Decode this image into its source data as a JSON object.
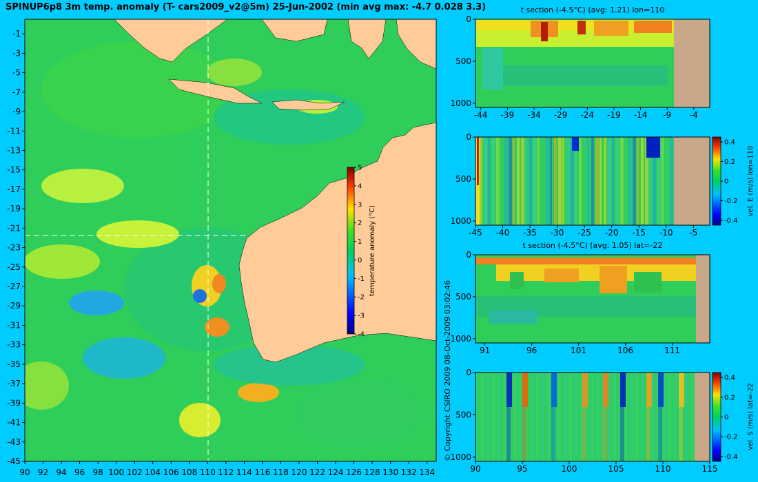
{
  "title": "SPINUP6p8 3m temp. anomaly (T- cars2009_v2@5m) 25-Jun-2002 (min avg max: -4.7 0.028 3.3)",
  "copyright": "© Copyright CSIRO 2009  08-Oct-2009 03:02:46",
  "colors": {
    "background": "#00ccff",
    "land": "#ffcc99",
    "section_land": "#c8a888"
  },
  "chart_data": [
    {
      "type": "heatmap",
      "title": "SPINUP6p8 3m temp. anomaly (T- cars2009_v2@5m) 25-Jun-2002 (min avg max: -4.7 0.028 3.3)",
      "x_ticks": [
        "90",
        "92",
        "94",
        "96",
        "98",
        "100",
        "102",
        "104",
        "106",
        "108",
        "110",
        "112",
        "114",
        "116",
        "118",
        "120",
        "122",
        "124",
        "126",
        "128",
        "130",
        "132",
        "134"
      ],
      "y_ticks": [
        "-1",
        "-3",
        "-5",
        "-7",
        "-9",
        "-11",
        "-13",
        "-15",
        "-17",
        "-19",
        "-21",
        "-23",
        "-25",
        "-27",
        "-29",
        "-31",
        "-33",
        "-35",
        "-37",
        "-39",
        "-41",
        "-43",
        "-45"
      ],
      "xlim": [
        90,
        135
      ],
      "ylim": [
        -45,
        0.5
      ],
      "section_lines": {
        "lon": 110,
        "lat": -22
      },
      "colorbar": {
        "label": "temperature anomaly (°C)",
        "ticks": [
          "5",
          "4",
          "3",
          "2",
          "1",
          "0",
          "-1",
          "-2",
          "-3",
          "-4"
        ],
        "range": [
          -4,
          5
        ]
      }
    },
    {
      "type": "heatmap",
      "title": "t section (-4.5°C) (avg: 1.21) lon=110",
      "x_ticks": [
        "-44",
        "-39",
        "-34",
        "-29",
        "-24",
        "-19",
        "-14",
        "-9",
        "-4"
      ],
      "y_ticks": [
        "0",
        "500",
        "1000"
      ],
      "xlim": [
        -45,
        -1
      ],
      "ylim": [
        1050,
        0
      ]
    },
    {
      "type": "heatmap",
      "title": "",
      "x_ticks": [
        "-45",
        "-40",
        "-35",
        "-30",
        "-25",
        "-20",
        "-15",
        "-10",
        "-5"
      ],
      "y_ticks": [
        "0",
        "500",
        "1000"
      ],
      "xlim": [
        -45,
        -2
      ],
      "ylim": [
        1050,
        0
      ],
      "colorbar": {
        "label": "vel. E (m/s) lon=110",
        "ticks": [
          "0.4",
          "0.2",
          "0",
          "-0.2",
          "-0.4"
        ],
        "range": [
          -0.45,
          0.45
        ]
      }
    },
    {
      "type": "heatmap",
      "title": "t section (-4.5°C) (avg: 1.05) lat=-22",
      "x_ticks": [
        "91",
        "96",
        "101",
        "106",
        "111"
      ],
      "y_ticks": [
        "0",
        "500",
        "1000"
      ],
      "xlim": [
        90,
        115
      ],
      "ylim": [
        1050,
        0
      ]
    },
    {
      "type": "heatmap",
      "title": "",
      "x_ticks": [
        "90",
        "95",
        "100",
        "105",
        "110",
        "115"
      ],
      "y_ticks": [
        "0",
        "500",
        "1000"
      ],
      "xlim": [
        90,
        115
      ],
      "ylim": [
        1050,
        0
      ],
      "colorbar": {
        "label": "vel. S (m/s) lat=-22",
        "ticks": [
          "0.4",
          "0.2",
          "0",
          "-0.2",
          "-0.4"
        ],
        "range": [
          -0.45,
          0.45
        ]
      }
    }
  ]
}
